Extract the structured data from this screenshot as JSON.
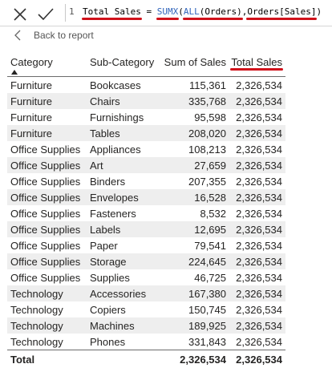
{
  "formula_bar": {
    "line_number": "1",
    "tokens": {
      "measure": "Total Sales",
      "equals": " = ",
      "function": "SUMX",
      "open1": "(",
      "all_fn": "ALL",
      "open2": "(",
      "table_arg": "Orders",
      "close2": ")",
      "comma": ",",
      "column_ref": "Orders[Sales]",
      "close1": ")"
    },
    "colors": {
      "function": "#3165bb",
      "underline": "#d0121b"
    }
  },
  "back": {
    "label": "Back to report"
  },
  "table": {
    "columns": {
      "category": "Category",
      "subcategory": "Sub-Category",
      "sum_of_sales": "Sum of Sales",
      "total_sales": "Total Sales"
    },
    "rows": [
      {
        "category": "Furniture",
        "subcategory": "Bookcases",
        "sum_of_sales": "115,361",
        "total_sales": "2,326,534"
      },
      {
        "category": "Furniture",
        "subcategory": "Chairs",
        "sum_of_sales": "335,768",
        "total_sales": "2,326,534"
      },
      {
        "category": "Furniture",
        "subcategory": "Furnishings",
        "sum_of_sales": "95,598",
        "total_sales": "2,326,534"
      },
      {
        "category": "Furniture",
        "subcategory": "Tables",
        "sum_of_sales": "208,020",
        "total_sales": "2,326,534"
      },
      {
        "category": "Office Supplies",
        "subcategory": "Appliances",
        "sum_of_sales": "108,213",
        "total_sales": "2,326,534"
      },
      {
        "category": "Office Supplies",
        "subcategory": "Art",
        "sum_of_sales": "27,659",
        "total_sales": "2,326,534"
      },
      {
        "category": "Office Supplies",
        "subcategory": "Binders",
        "sum_of_sales": "207,355",
        "total_sales": "2,326,534"
      },
      {
        "category": "Office Supplies",
        "subcategory": "Envelopes",
        "sum_of_sales": "16,528",
        "total_sales": "2,326,534"
      },
      {
        "category": "Office Supplies",
        "subcategory": "Fasteners",
        "sum_of_sales": "8,532",
        "total_sales": "2,326,534"
      },
      {
        "category": "Office Supplies",
        "subcategory": "Labels",
        "sum_of_sales": "12,695",
        "total_sales": "2,326,534"
      },
      {
        "category": "Office Supplies",
        "subcategory": "Paper",
        "sum_of_sales": "79,541",
        "total_sales": "2,326,534"
      },
      {
        "category": "Office Supplies",
        "subcategory": "Storage",
        "sum_of_sales": "224,645",
        "total_sales": "2,326,534"
      },
      {
        "category": "Office Supplies",
        "subcategory": "Supplies",
        "sum_of_sales": "46,725",
        "total_sales": "2,326,534"
      },
      {
        "category": "Technology",
        "subcategory": "Accessories",
        "sum_of_sales": "167,380",
        "total_sales": "2,326,534"
      },
      {
        "category": "Technology",
        "subcategory": "Copiers",
        "sum_of_sales": "150,745",
        "total_sales": "2,326,534"
      },
      {
        "category": "Technology",
        "subcategory": "Machines",
        "sum_of_sales": "189,925",
        "total_sales": "2,326,534"
      },
      {
        "category": "Technology",
        "subcategory": "Phones",
        "sum_of_sales": "331,843",
        "total_sales": "2,326,534"
      }
    ],
    "total": {
      "label": "Total",
      "sum_of_sales": "2,326,534",
      "total_sales": "2,326,534"
    },
    "sort": {
      "column": "category",
      "direction": "ascending",
      "icon": "sort-up-icon"
    },
    "colors": {
      "stripe": "#eeeeee",
      "text": "#252423"
    }
  },
  "icons": {
    "cancel": "close-icon",
    "commit": "check-icon",
    "back": "chevron-left-icon"
  }
}
